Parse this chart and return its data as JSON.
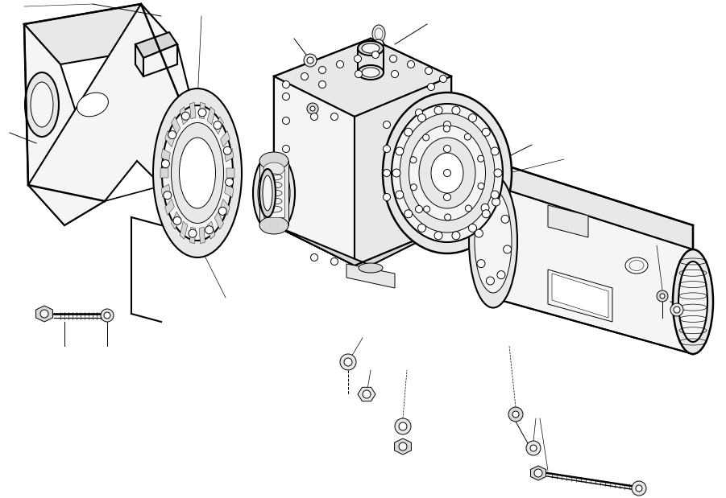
{
  "background_color": "#ffffff",
  "fig_width": 9.01,
  "fig_height": 6.19,
  "dpi": 100,
  "lc": "#000000",
  "lw": 1.5,
  "tlw": 0.7,
  "fill_light": "#f5f5f5",
  "fill_mid": "#e8e8e8",
  "fill_dark": "#d8d8d8"
}
